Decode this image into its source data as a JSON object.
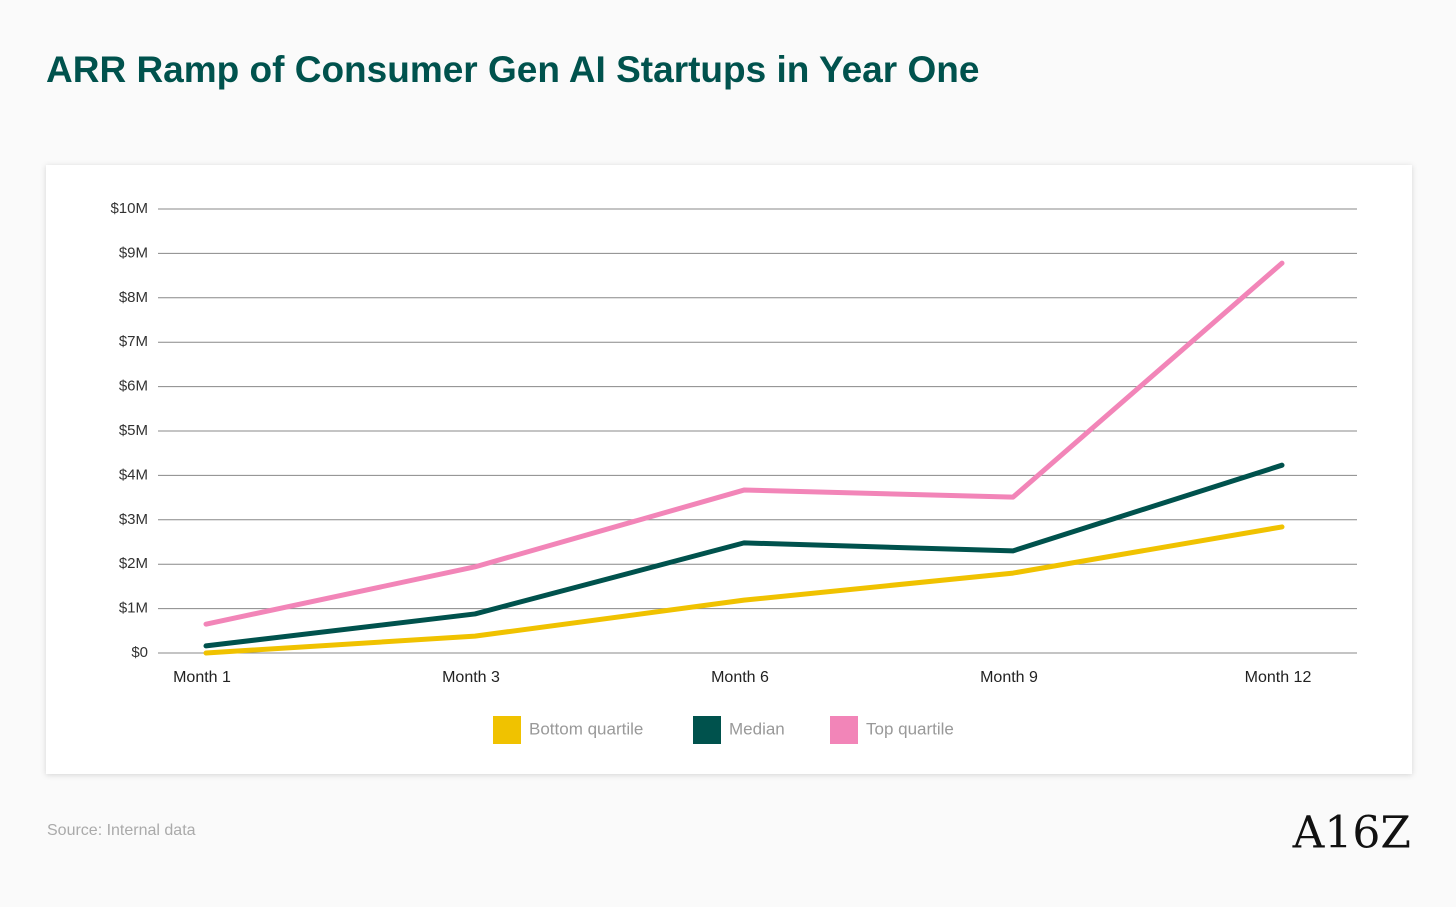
{
  "chart_data": {
    "type": "line",
    "title": "ARR Ramp of Consumer Gen AI Startups in Year One",
    "categories": [
      "Month 1",
      "Month 3",
      "Month 6",
      "Month 9",
      "Month 12"
    ],
    "series": [
      {
        "name": "Bottom quartile",
        "color": "#f0c200",
        "values": [
          0.0,
          0.38,
          1.19,
          1.8,
          2.84
        ]
      },
      {
        "name": "Median",
        "color": "#00524d",
        "values": [
          0.16,
          0.88,
          2.48,
          2.3,
          4.23
        ]
      },
      {
        "name": "Top quartile",
        "color": "#f285b8",
        "values": [
          0.65,
          1.94,
          3.67,
          3.51,
          8.78
        ]
      }
    ],
    "ylim": [
      0,
      10
    ],
    "yticks": [
      {
        "value": 0,
        "label": "$0"
      },
      {
        "value": 1,
        "label": "$1M"
      },
      {
        "value": 2,
        "label": "$2M"
      },
      {
        "value": 3,
        "label": "$3M"
      },
      {
        "value": 4,
        "label": "$4M"
      },
      {
        "value": 5,
        "label": "$5M"
      },
      {
        "value": 6,
        "label": "$6M"
      },
      {
        "value": 7,
        "label": "$7M"
      },
      {
        "value": 8,
        "label": "$8M"
      },
      {
        "value": 9,
        "label": "$9M"
      },
      {
        "value": 10,
        "label": "$10M"
      }
    ],
    "grid": true,
    "legend": "bottom",
    "source": "Source: Internal data",
    "logo": "A16Z"
  }
}
